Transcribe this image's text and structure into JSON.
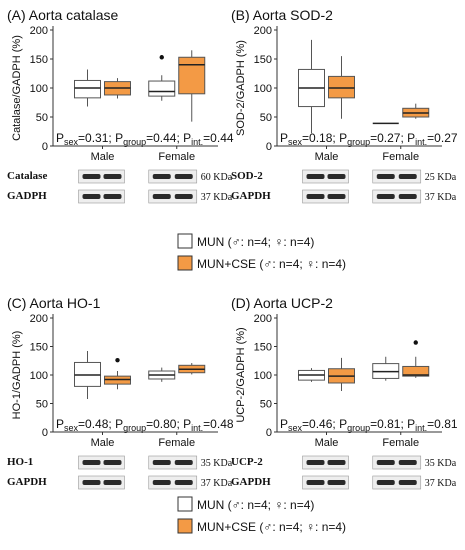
{
  "colors": {
    "mun": "#ffffff",
    "mun_cse": "#f39a45",
    "box_stroke": "#555555",
    "axis": "#333333"
  },
  "chart_data": [
    {
      "type": "box",
      "title": "(A) Aorta catalase",
      "ylabel": "Catalase/GADPH (%)",
      "ylim": [
        0,
        200
      ],
      "yticks": [
        "0",
        "50",
        "100",
        "150",
        "200"
      ],
      "groups": [
        "Male",
        "Female"
      ],
      "series_labels": [
        "MUN",
        "MUN+CSE"
      ],
      "boxes": [
        {
          "group": "Male",
          "series": "MUN",
          "whisker_low": 68,
          "q1": 83,
          "median": 100,
          "q3": 113,
          "whisker_high": 132,
          "outliers": []
        },
        {
          "group": "Male",
          "series": "MUN+CSE",
          "whisker_low": 82,
          "q1": 88,
          "median": 100,
          "q3": 111,
          "whisker_high": 117,
          "outliers": []
        },
        {
          "group": "Female",
          "series": "MUN",
          "whisker_low": 78,
          "q1": 86,
          "median": 94,
          "q3": 112,
          "whisker_high": 122,
          "outliers": [
            153
          ]
        },
        {
          "group": "Female",
          "series": "MUN+CSE",
          "whisker_low": 42,
          "q1": 90,
          "median": 140,
          "q3": 153,
          "whisker_high": 165,
          "outliers": []
        }
      ],
      "stats": {
        "p_sex": "0.31",
        "p_group": "0.44",
        "p_int": "0.44"
      },
      "blots": [
        {
          "label": "Catalase",
          "kda": "60 KDa"
        },
        {
          "label": "GADPH",
          "kda": "37 KDa"
        }
      ]
    },
    {
      "type": "box",
      "title": "(B) Aorta SOD-2",
      "ylabel": "SOD-2/GADPH (%)",
      "ylim": [
        0,
        200
      ],
      "yticks": [
        "0",
        "50",
        "100",
        "150",
        "200"
      ],
      "groups": [
        "Male",
        "Female"
      ],
      "series_labels": [
        "MUN",
        "MUN+CSE"
      ],
      "boxes": [
        {
          "group": "Male",
          "series": "MUN",
          "whisker_low": 22,
          "q1": 68,
          "median": 100,
          "q3": 132,
          "whisker_high": 183,
          "outliers": []
        },
        {
          "group": "Male",
          "series": "MUN+CSE",
          "whisker_low": 47,
          "q1": 83,
          "median": 100,
          "q3": 120,
          "whisker_high": 155,
          "outliers": []
        },
        {
          "group": "Female",
          "series": "MUN",
          "whisker_low": 39,
          "q1": 39,
          "median": 39,
          "q3": 39,
          "whisker_high": 39,
          "outliers": []
        },
        {
          "group": "Female",
          "series": "MUN+CSE",
          "whisker_low": 47,
          "q1": 50,
          "median": 57,
          "q3": 65,
          "whisker_high": 73,
          "outliers": []
        }
      ],
      "stats": {
        "p_sex": "0.18",
        "p_group": "0.27",
        "p_int": "0.27"
      },
      "blots": [
        {
          "label": "SOD-2",
          "kda": "25 KDa"
        },
        {
          "label": "GAPDH",
          "kda": "37 KDa"
        }
      ]
    },
    {
      "type": "box",
      "title": "(C) Aorta HO-1",
      "ylabel": "HO-1/GADPH (%)",
      "ylim": [
        0,
        200
      ],
      "yticks": [
        "0",
        "50",
        "100",
        "150",
        "200"
      ],
      "groups": [
        "Male",
        "Female"
      ],
      "series_labels": [
        "MUN",
        "MUN+CSE"
      ],
      "boxes": [
        {
          "group": "Male",
          "series": "MUN",
          "whisker_low": 58,
          "q1": 80,
          "median": 100,
          "q3": 122,
          "whisker_high": 142,
          "outliers": []
        },
        {
          "group": "Male",
          "series": "MUN+CSE",
          "whisker_low": 75,
          "q1": 84,
          "median": 92,
          "q3": 98,
          "whisker_high": 107,
          "outliers": [
            126
          ]
        },
        {
          "group": "Female",
          "series": "MUN",
          "whisker_low": 88,
          "q1": 93,
          "median": 100,
          "q3": 107,
          "whisker_high": 113,
          "outliers": []
        },
        {
          "group": "Female",
          "series": "MUN+CSE",
          "whisker_low": 101,
          "q1": 104,
          "median": 110,
          "q3": 117,
          "whisker_high": 121,
          "outliers": []
        }
      ],
      "stats": {
        "p_sex": "0.48",
        "p_group": "0.80",
        "p_int": "0.48"
      },
      "blots": [
        {
          "label": "HO-1",
          "kda": "35 KDa"
        },
        {
          "label": "GAPDH",
          "kda": "37 KDa"
        }
      ]
    },
    {
      "type": "box",
      "title": "(D) Aorta UCP-2",
      "ylabel": "UCP-2/GADPH (%)",
      "ylim": [
        0,
        200
      ],
      "yticks": [
        "0",
        "50",
        "100",
        "150",
        "200"
      ],
      "groups": [
        "Male",
        "Female"
      ],
      "series_labels": [
        "MUN",
        "MUN+CSE"
      ],
      "boxes": [
        {
          "group": "Male",
          "series": "MUN",
          "whisker_low": 88,
          "q1": 91,
          "median": 100,
          "q3": 108,
          "whisker_high": 112,
          "outliers": []
        },
        {
          "group": "Male",
          "series": "MUN+CSE",
          "whisker_low": 72,
          "q1": 86,
          "median": 98,
          "q3": 111,
          "whisker_high": 130,
          "outliers": []
        },
        {
          "group": "Female",
          "series": "MUN",
          "whisker_low": 90,
          "q1": 94,
          "median": 106,
          "q3": 120,
          "whisker_high": 132,
          "outliers": []
        },
        {
          "group": "Female",
          "series": "MUN+CSE",
          "whisker_low": 95,
          "q1": 98,
          "median": 100,
          "q3": 115,
          "whisker_high": 132,
          "outliers": [
            157
          ]
        }
      ],
      "stats": {
        "p_sex": "0.46",
        "p_group": "0.81",
        "p_int": "0.81"
      },
      "blots": [
        {
          "label": "UCP-2",
          "kda": "35 KDa"
        },
        {
          "label": "GAPDH",
          "kda": "37 KDa"
        }
      ]
    }
  ],
  "legends": [
    {
      "items": [
        {
          "series": "MUN",
          "label": "MUN (♂: n=4; ♀: n=4)"
        },
        {
          "series": "MUN+CSE",
          "label": "MUN+CSE (♂: n=4; ♀: n=4)"
        }
      ]
    },
    {
      "items": [
        {
          "series": "MUN",
          "label": "MUN (♂: n=4; ♀: n=4)"
        },
        {
          "series": "MUN+CSE",
          "label": "MUN+CSE (♂: n=4; ♀: n=4)"
        }
      ]
    }
  ]
}
